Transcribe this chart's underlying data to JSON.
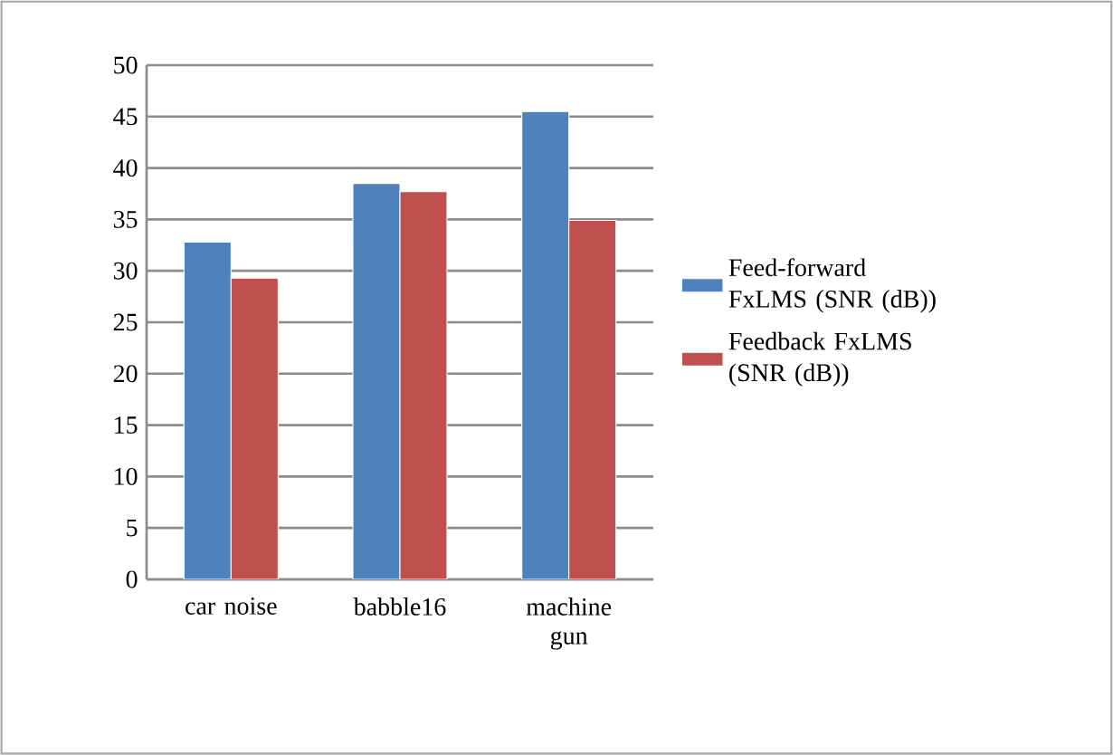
{
  "chart_data": {
    "type": "bar",
    "categories": [
      "car noise",
      "babble16",
      "machine gun"
    ],
    "series": [
      {
        "name": "Feed-forward FxLMS (SNR (dB))",
        "color": "#4f81bd",
        "values": [
          32.8,
          38.5,
          45.5
        ]
      },
      {
        "name": "Feedback FxLMS (SNR (dB))",
        "color": "#c0504d",
        "values": [
          29.3,
          37.7,
          34.9
        ]
      }
    ],
    "ylim": [
      0,
      50
    ],
    "yticks": [
      0,
      5,
      10,
      15,
      20,
      25,
      30,
      35,
      40,
      45,
      50
    ],
    "grid": "y",
    "legend": "right"
  }
}
